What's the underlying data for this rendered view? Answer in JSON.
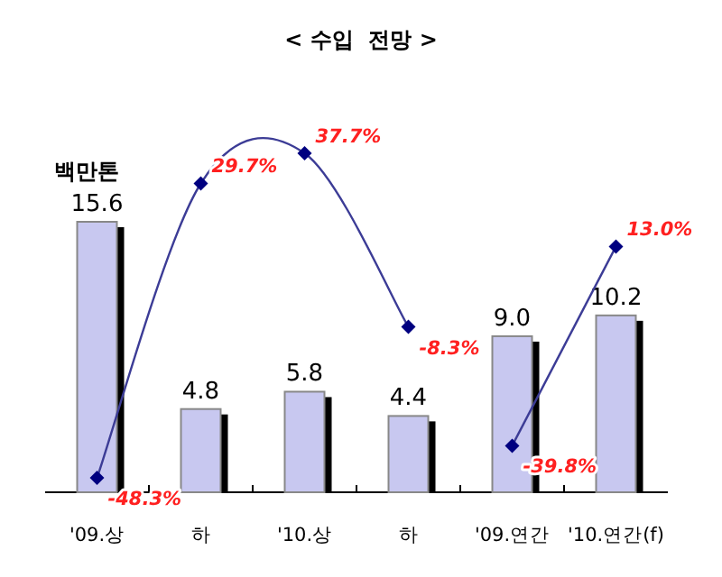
{
  "chart_data": {
    "type": "bar",
    "title": "< 수입  전망 >",
    "categories": [
      "'09.상",
      "하",
      "'10.상",
      "하",
      "'09.연간",
      "'10.연간(f)"
    ],
    "marker": "diamond",
    "annotations": [
      "백만톤"
    ],
    "series": [
      {
        "color": "#c8c8f0",
        "values": [
          15.6,
          4.8,
          5.8,
          4.4,
          9.0,
          10.2
        ],
        "value_labels": [
          "15.6",
          "4.8",
          "5.8",
          "4.4",
          "9.0",
          "10.2"
        ]
      },
      {
        "type": "line",
        "axis": "y2",
        "color": "#3c3c96",
        "values": [
          -48.3,
          29.7,
          37.7,
          -8.3,
          null,
          null
        ],
        "value_labels": [
          "-48.3%",
          "29.7%",
          "37.7%",
          "-8.3%",
          null,
          null
        ]
      },
      {
        "type": "line",
        "axis": "y2",
        "color": "#3c3c96",
        "values": [
          null,
          null,
          null,
          null,
          -39.8,
          13.0
        ],
        "value_labels": [
          null,
          null,
          null,
          null,
          "-39.8%",
          "13.0%"
        ]
      }
    ]
  }
}
